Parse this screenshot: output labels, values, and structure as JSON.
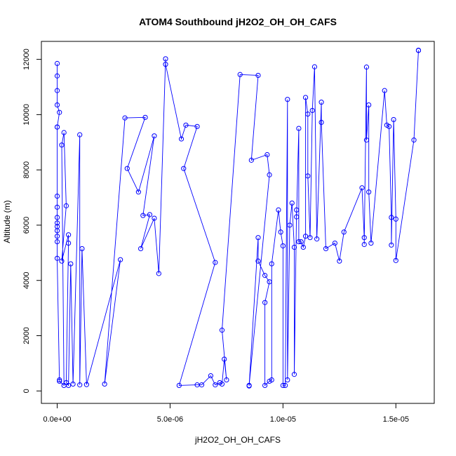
{
  "chart_data": {
    "type": "line",
    "title": "ATOM4 Southbound jH2O2_OH_OH_CAFS",
    "xlabel": "jH2O2_OH_OH_CAFS",
    "ylabel": "Altitude (m)",
    "xlim": [
      -7e-07,
      1.67e-05
    ],
    "ylim": [
      -450,
      12650
    ],
    "x_ticks": [
      0,
      5e-06,
      1e-05,
      1.5e-05
    ],
    "x_tick_labels": [
      "0.0e+00",
      "5.0e-06",
      "1.0e-05",
      "1.5e-05"
    ],
    "y_ticks": [
      0,
      2000,
      4000,
      6000,
      8000,
      10000,
      12000
    ],
    "y_tick_labels": [
      "0",
      "2000",
      "4000",
      "6000",
      "8000",
      "10000",
      "12000"
    ],
    "grid": false,
    "markers": "open-circle",
    "series": [
      {
        "color": "#0000ff",
        "points": [
          [
            0.0,
            11850
          ],
          [
            0.0,
            11400
          ],
          [
            0.0,
            10870
          ],
          [
            0.0,
            10350
          ],
          [
            1e-07,
            10080
          ],
          [
            0.0,
            9550
          ],
          [
            0.0,
            9550
          ],
          [
            0.0,
            7050
          ],
          [
            0.0,
            6650
          ],
          [
            0.0,
            6280
          ],
          [
            0.0,
            6080
          ],
          [
            0.0,
            5950
          ],
          [
            0.0,
            5800
          ],
          [
            0.0,
            5600
          ],
          [
            0.0,
            5400
          ],
          [
            0.0,
            4800
          ],
          [
            1e-07,
            400
          ],
          [
            1e-07,
            350
          ],
          [
            3e-07,
            200
          ],
          [
            2e-07,
            8900
          ],
          [
            3e-07,
            9350
          ],
          [
            4e-07,
            6700
          ],
          [
            2e-07,
            4700
          ],
          [
            5e-07,
            5650
          ],
          [
            5e-07,
            5350
          ],
          [
            4e-07,
            300
          ],
          [
            5e-07,
            200
          ],
          [
            6e-07,
            4600
          ],
          [
            7e-07,
            250
          ],
          [
            1e-06,
            9270
          ],
          [
            1e-06,
            220
          ],
          [
            1.1e-06,
            5150
          ],
          [
            1.3e-06,
            230
          ],
          [
            2.8e-06,
            4750
          ],
          [
            2.1e-06,
            250
          ],
          [
            3e-06,
            9880
          ],
          [
            3.9e-06,
            9900
          ],
          [
            3.1e-06,
            8050
          ],
          [
            3.6e-06,
            7200
          ],
          [
            4.3e-06,
            9230
          ],
          [
            3.8e-06,
            6350
          ],
          [
            4.1e-06,
            6380
          ],
          [
            3.7e-06,
            5150
          ],
          [
            4.3e-06,
            6250
          ],
          [
            4.5e-06,
            4250
          ],
          [
            4.8e-06,
            12020
          ],
          [
            4.8e-06,
            11820
          ],
          [
            5.5e-06,
            9120
          ],
          [
            5.7e-06,
            9620
          ],
          [
            6.2e-06,
            9570
          ],
          [
            5.6e-06,
            8050
          ],
          [
            7e-06,
            4650
          ],
          [
            5.4e-06,
            200
          ],
          [
            6.2e-06,
            220
          ],
          [
            6.4e-06,
            220
          ],
          [
            6.8e-06,
            550
          ],
          [
            7e-06,
            220
          ],
          [
            7.2e-06,
            300
          ],
          [
            7.3e-06,
            250
          ],
          [
            7.4e-06,
            1150
          ],
          [
            7.5e-06,
            400
          ],
          [
            7.3e-06,
            2200
          ],
          [
            8.1e-06,
            11450
          ],
          [
            8.9e-06,
            11420
          ],
          [
            8.6e-06,
            8350
          ],
          [
            9.3e-06,
            8550
          ],
          [
            9.4e-06,
            7820
          ],
          [
            8.5e-06,
            200
          ],
          [
            8.5e-06,
            180
          ],
          [
            8.9e-06,
            5550
          ],
          [
            8.9e-06,
            4700
          ],
          [
            9.2e-06,
            4180
          ],
          [
            9.4e-06,
            3950
          ],
          [
            9.2e-06,
            3200
          ],
          [
            9.2e-06,
            200
          ],
          [
            9.4e-06,
            350
          ],
          [
            9.5e-06,
            400
          ],
          [
            9.5e-06,
            4600
          ],
          [
            9.8e-06,
            6550
          ],
          [
            9.9e-06,
            5750
          ],
          [
            1e-05,
            5250
          ],
          [
            1e-05,
            200
          ],
          [
            1.01e-05,
            200
          ],
          [
            1.02e-05,
            10550
          ],
          [
            1.02e-05,
            400
          ],
          [
            1.03e-05,
            6000
          ],
          [
            1.04e-05,
            6800
          ],
          [
            1.05e-05,
            5200
          ],
          [
            1.05e-05,
            600
          ],
          [
            1.06e-05,
            6550
          ],
          [
            1.06e-05,
            6300
          ],
          [
            1.07e-05,
            9500
          ],
          [
            1.07e-05,
            5400
          ],
          [
            1.08e-05,
            5400
          ],
          [
            1.09e-05,
            5200
          ],
          [
            1.1e-05,
            5600
          ],
          [
            1.1e-05,
            10620
          ],
          [
            1.11e-05,
            10020
          ],
          [
            1.11e-05,
            7780
          ],
          [
            1.12e-05,
            5550
          ],
          [
            1.13e-05,
            10150
          ],
          [
            1.14e-05,
            11730
          ],
          [
            1.15e-05,
            5500
          ],
          [
            1.17e-05,
            10450
          ],
          [
            1.17e-05,
            9720
          ],
          [
            1.19e-05,
            5150
          ],
          [
            1.23e-05,
            5350
          ],
          [
            1.25e-05,
            4700
          ],
          [
            1.27e-05,
            5750
          ],
          [
            1.35e-05,
            7350
          ],
          [
            1.36e-05,
            5550
          ],
          [
            1.36e-05,
            5300
          ],
          [
            1.37e-05,
            11720
          ],
          [
            1.37e-05,
            9080
          ],
          [
            1.38e-05,
            10350
          ],
          [
            1.38e-05,
            7200
          ],
          [
            1.39e-05,
            5350
          ],
          [
            1.45e-05,
            10870
          ],
          [
            1.46e-05,
            9620
          ],
          [
            1.47e-05,
            9570
          ],
          [
            1.48e-05,
            6280
          ],
          [
            1.48e-05,
            5280
          ],
          [
            1.49e-05,
            9820
          ],
          [
            1.5e-05,
            6220
          ],
          [
            1.5e-05,
            4720
          ],
          [
            1.58e-05,
            9080
          ],
          [
            1.6e-05,
            12330
          ],
          [
            1.6e-05,
            12320
          ]
        ]
      }
    ]
  }
}
